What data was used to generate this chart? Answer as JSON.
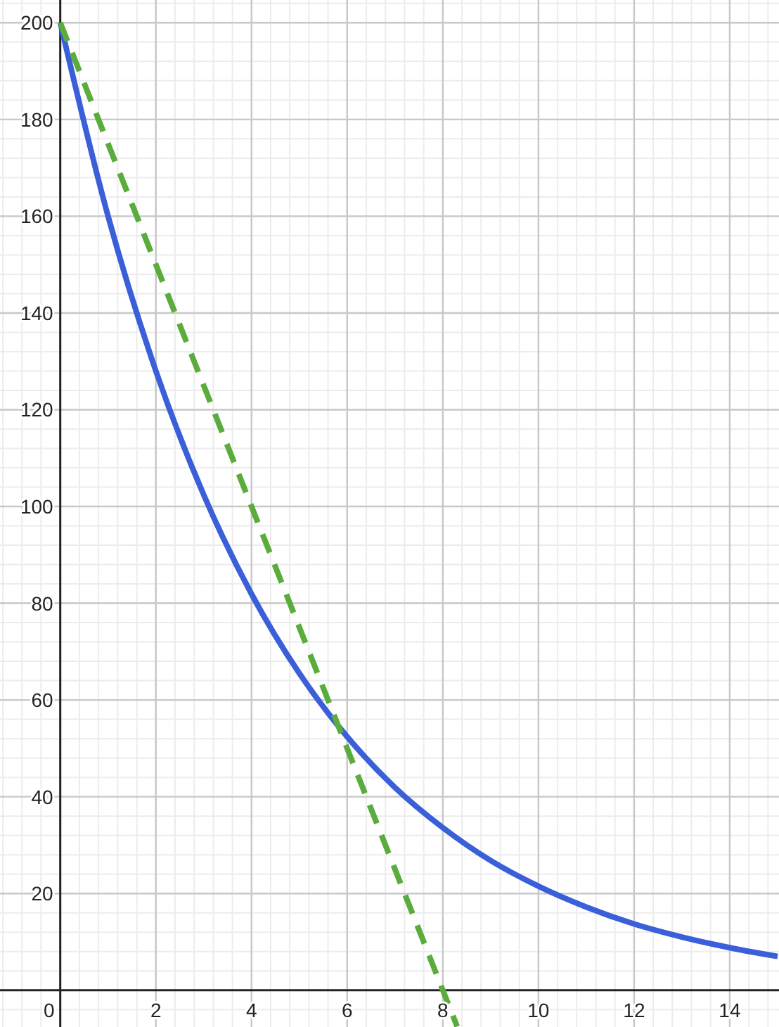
{
  "chart_data": {
    "type": "line",
    "xlim": [
      -1.26,
      15.03
    ],
    "ylim": [
      -7.6,
      204.7
    ],
    "xticks": [
      0,
      2,
      4,
      6,
      8,
      10,
      12,
      14
    ],
    "yticks": [
      20,
      40,
      60,
      80,
      100,
      120,
      140,
      160,
      180,
      200
    ],
    "grid": true,
    "series": [
      {
        "color": "#3a5fd9",
        "line_style": "solid",
        "x": [
          0,
          1,
          2,
          3,
          4,
          5,
          6,
          7,
          8,
          9,
          10,
          11,
          12,
          13,
          14,
          15
        ],
        "values": [
          200,
          160,
          128,
          102.4,
          81.9,
          65.5,
          52.4,
          41.9,
          33.6,
          26.8,
          21.5,
          17.2,
          13.7,
          11.0,
          8.8,
          7.0
        ]
      },
      {
        "color": "#5aac3c",
        "line_style": "dashed",
        "x": [
          0,
          8.3
        ],
        "values": [
          200,
          -7.5
        ]
      }
    ]
  }
}
